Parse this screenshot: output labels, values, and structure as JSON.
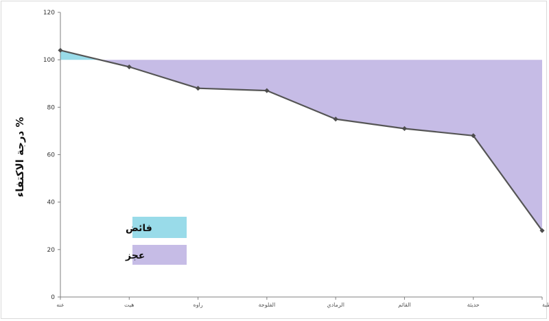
{
  "chart_data": {
    "type": "area",
    "ylabel": "درجة الاكتفاء %",
    "xlabel": "",
    "categories": [
      "عنه",
      "هيت",
      "راوه",
      "الفلوجة",
      "الرمادي",
      "القائم",
      "حديثة",
      "الرطبة"
    ],
    "values": [
      104,
      97,
      88,
      87,
      75,
      71,
      68,
      28
    ],
    "baseline": 100,
    "ylim": [
      0,
      120
    ],
    "yticks": [
      0,
      20,
      40,
      60,
      80,
      100,
      120
    ],
    "grid": false,
    "legend": {
      "placement": "left",
      "items": [
        {
          "label": "فائض",
          "color": "#99dbe9"
        },
        {
          "label": "عجز",
          "color": "#c6bce6"
        }
      ]
    },
    "colors": {
      "surplus": "#99dbe9",
      "deficit": "#c6bce6",
      "line": "#555555",
      "marker": "#4d4d4d",
      "axis": "#7f7f7f"
    }
  }
}
